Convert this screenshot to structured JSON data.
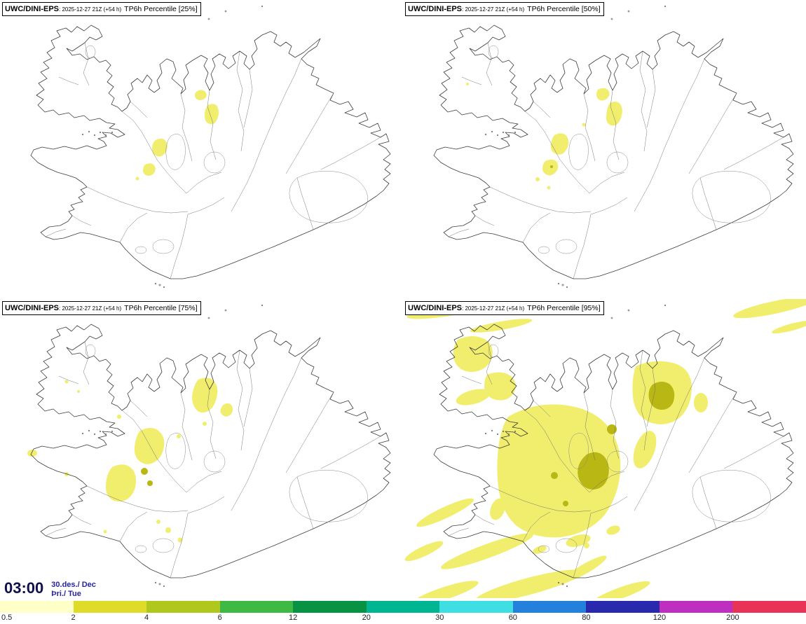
{
  "panels": [
    {
      "model": "UWC/DINI-EPS",
      "run": ": 2025-12-27 21Z (+54 h)",
      "variable": "TP6h Percentile [25%]"
    },
    {
      "model": "UWC/DINI-EPS",
      "run": ": 2025-12-27 21Z (+54 h)",
      "variable": "TP6h Percentile [50%]"
    },
    {
      "model": "UWC/DINI-EPS",
      "run": ": 2025-12-27 21Z (+54 h)",
      "variable": "TP6h Percentile [75%]"
    },
    {
      "model": "UWC/DINI-EPS",
      "run": ": 2025-12-27 21Z (+54 h)",
      "variable": "TP6h Percentile [95%]"
    }
  ],
  "footer": {
    "time": "03:00",
    "date": "30.des./ Dec",
    "weekday": "Þri./ Tue"
  },
  "colorbar": {
    "labels": [
      "0.5",
      "2",
      "4",
      "6",
      "12",
      "20",
      "30",
      "60",
      "80",
      "120",
      "200"
    ],
    "colors": [
      "#ffffc8",
      "#dedc28",
      "#b0c81e",
      "#3eb943",
      "#089244",
      "#00b591",
      "#3edee2",
      "#2380db",
      "#2929ae",
      "#bf2fbf",
      "#e83357"
    ]
  },
  "precip_colors": {
    "light": "#f1ee6e",
    "dark": "#b9b713"
  }
}
